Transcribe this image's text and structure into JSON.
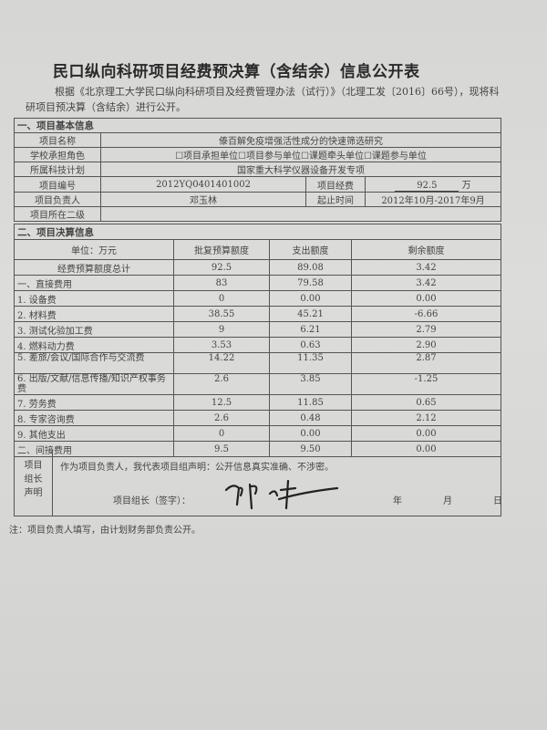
{
  "title": "民口纵向科研项目经费预决算（含结余）信息公开表",
  "intro": "根据《北京理工大学民口纵向科研项目及经费管理办法（试行）》（北理工发〔2016〕66号），现将科研项目预决算（含结余）进行公开。",
  "section1": {
    "heading": "一、项目基本信息",
    "name_label": "项目名称",
    "name_value": "傣百解免疫增强活性成分的快速筛选研究",
    "role_label": "学校承担角色",
    "role_value": "☐项目承担单位☐项目参与单位☐课题牵头单位☐课题参与单位",
    "plan_label": "所属科技计划",
    "plan_value": "国家重大科学仪器设备开发专项",
    "number_label": "项目编号",
    "number_value": "2012YQ0401401002",
    "funding_label": "项目经费",
    "funding_value": "92.5",
    "funding_unit": "万",
    "leader_label": "项目负责人",
    "leader_value": "邓玉林",
    "period_label": "起止时间",
    "period_value": "2012年10月-2017年9月",
    "level2_label": "项目所在二级",
    "level2_value": ""
  },
  "section2": {
    "heading": "二、项目决算信息",
    "columns": [
      "单位：万元",
      "批复预算额度",
      "支出额度",
      "剩余额度"
    ],
    "rows": [
      {
        "item": "经费预算额度总计",
        "budget": "92.5",
        "spent": "89.08",
        "remain": "3.42"
      },
      {
        "item": "一、直接费用",
        "budget": "83",
        "spent": "79.58",
        "remain": "3.42"
      },
      {
        "item": "1. 设备费",
        "budget": "0",
        "spent": "0.00",
        "remain": "0.00"
      },
      {
        "item": "2. 材料费",
        "budget": "38.55",
        "spent": "45.21",
        "remain": "-6.66"
      },
      {
        "item": "3. 测试化验加工费",
        "budget": "9",
        "spent": "6.21",
        "remain": "2.79"
      },
      {
        "item": "4. 燃料动力费",
        "budget": "3.53",
        "spent": "0.63",
        "remain": "2.90"
      },
      {
        "item": "5. 差旅/会议/国际合作与交流费",
        "budget": "14.22",
        "spent": "11.35",
        "remain": "2.87"
      },
      {
        "item": "6. 出版/文献/信息传播/知识产权事务费",
        "budget": "2.6",
        "spent": "3.85",
        "remain": "-1.25"
      },
      {
        "item": "7. 劳务费",
        "budget": "12.5",
        "spent": "11.85",
        "remain": "0.65"
      },
      {
        "item": "8. 专家咨询费",
        "budget": "2.6",
        "spent": "0.48",
        "remain": "2.12"
      },
      {
        "item": "9. 其他支出",
        "budget": "0",
        "spent": "0.00",
        "remain": "0.00"
      },
      {
        "item": "二、间接费用",
        "budget": "9.5",
        "spent": "9.50",
        "remain": "0.00"
      }
    ]
  },
  "declaration": {
    "label": "项目组长声明",
    "statement": "作为项目负责人，我代表项目组声明：公开信息真实准确、不涉密。",
    "sign_label": "项目组长（签字）：",
    "signature": "邓玉林",
    "year": "年",
    "month": "月",
    "day": "日"
  },
  "note": "注：项目负责人填写，由计划财务部负责公开。"
}
